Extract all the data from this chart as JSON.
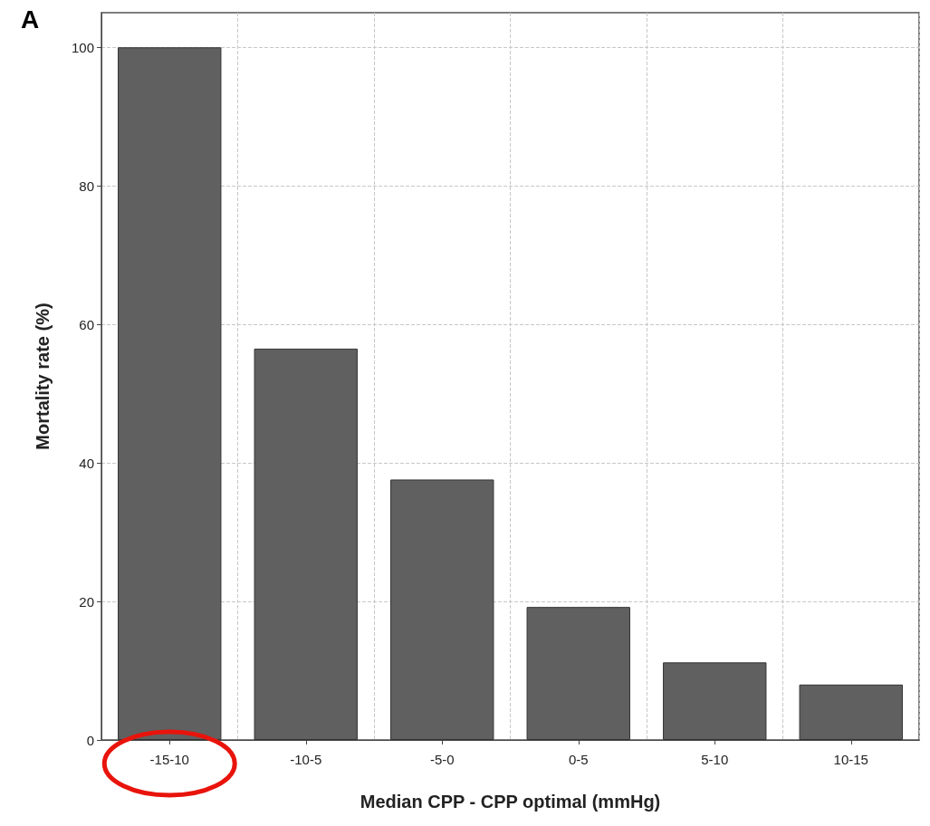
{
  "chart_data": {
    "type": "bar",
    "title": "A",
    "xlabel": "Median CPP - CPP optimal (mmHg)",
    "ylabel": "Mortality rate (%)",
    "categories": [
      "-15-10",
      "-10-5",
      "-5-0",
      "0-5",
      "5-10",
      "10-15"
    ],
    "values": [
      100,
      56.5,
      37.6,
      19.2,
      11.2,
      8.0
    ],
    "color": "#606060",
    "ylim": [
      0,
      105
    ],
    "yticks": [
      0,
      20,
      40,
      60,
      80,
      100
    ],
    "grid": true
  }
}
